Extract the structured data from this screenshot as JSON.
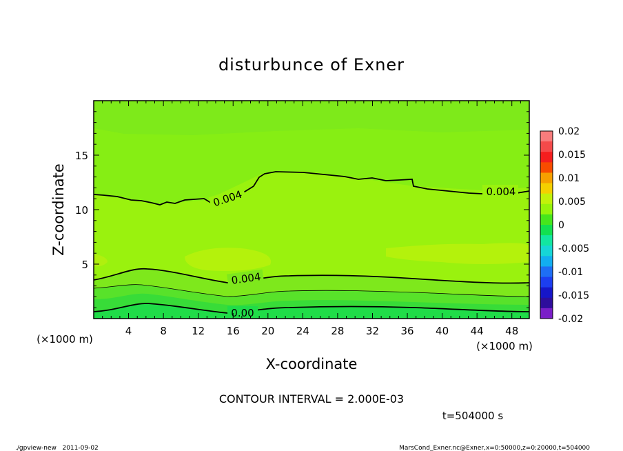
{
  "chart_data": {
    "type": "heatmap",
    "title": "disturbunce of Exner",
    "xlabel": "X-coordinate",
    "ylabel": "Z-coordinate",
    "x_unit": "(×1000 m)",
    "z_unit": "(×1000 m)",
    "xlim": [
      0,
      50
    ],
    "ylim": [
      0,
      20
    ],
    "x_ticks": [
      "4",
      "8",
      "12",
      "16",
      "20",
      "24",
      "28",
      "32",
      "36",
      "40",
      "44",
      "48"
    ],
    "y_ticks": [
      "5",
      "10",
      "15"
    ],
    "colorbar": {
      "ticks": [
        "0.02",
        "0.015",
        "0.01",
        "0.005",
        "0",
        "-0.005",
        "-0.01",
        "-0.015",
        "-0.02"
      ],
      "colors": [
        "#f87c7c",
        "#f44a4a",
        "#f41e1e",
        "#f84c00",
        "#f6a000",
        "#f4d000",
        "#c2f20a",
        "#96f40a",
        "#46e61c",
        "#12e050",
        "#12e6a0",
        "#16d6d6",
        "#12aef0",
        "#1e6ef4",
        "#1c3ef0",
        "#1616c8",
        "#2e0e9c",
        "#7a1ec8"
      ]
    },
    "contour_labels": [
      "0.004",
      "0.004",
      "0.004",
      "0.00"
    ],
    "contour_interval": "CONTOUR INTERVAL = 2.000E-03",
    "time": "t=504000 s"
  },
  "footer": {
    "left": "./gpview-new   2011-09-02",
    "right": "MarsCond_Exner.nc@Exner,x=0:50000,z=0:20000,t=504000"
  }
}
